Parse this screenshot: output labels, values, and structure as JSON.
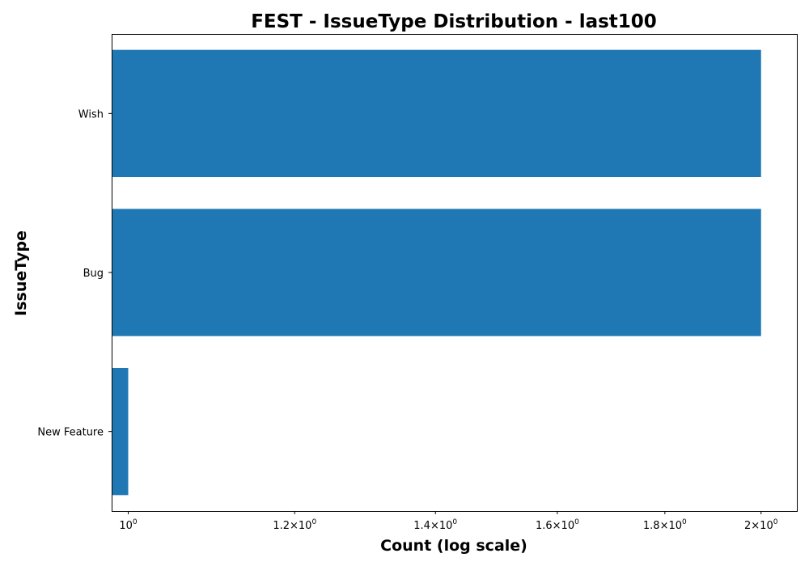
{
  "chart_data": {
    "type": "bar",
    "orientation": "horizontal",
    "title": "FEST - IssueType Distribution - last100",
    "xlabel": "Count (log scale)",
    "ylabel": "IssueType",
    "x_scale": "log",
    "xlim": [
      0.982,
      2.08
    ],
    "grid": false,
    "bar_color": "#1f77b4",
    "categories": [
      "Wish",
      "Bug",
      "New Feature"
    ],
    "values": [
      2,
      2,
      1
    ],
    "x_ticks": [
      {
        "value": 1.0,
        "mantissa": "",
        "base": "10",
        "exp": "0"
      },
      {
        "value": 1.2,
        "mantissa": "1.2",
        "base": "10",
        "exp": "0"
      },
      {
        "value": 1.4,
        "mantissa": "1.4",
        "base": "10",
        "exp": "0"
      },
      {
        "value": 1.6,
        "mantissa": "1.6",
        "base": "10",
        "exp": "0"
      },
      {
        "value": 1.8,
        "mantissa": "1.8",
        "base": "10",
        "exp": "0"
      },
      {
        "value": 2.0,
        "mantissa": "2",
        "base": "10",
        "exp": "0"
      }
    ]
  }
}
